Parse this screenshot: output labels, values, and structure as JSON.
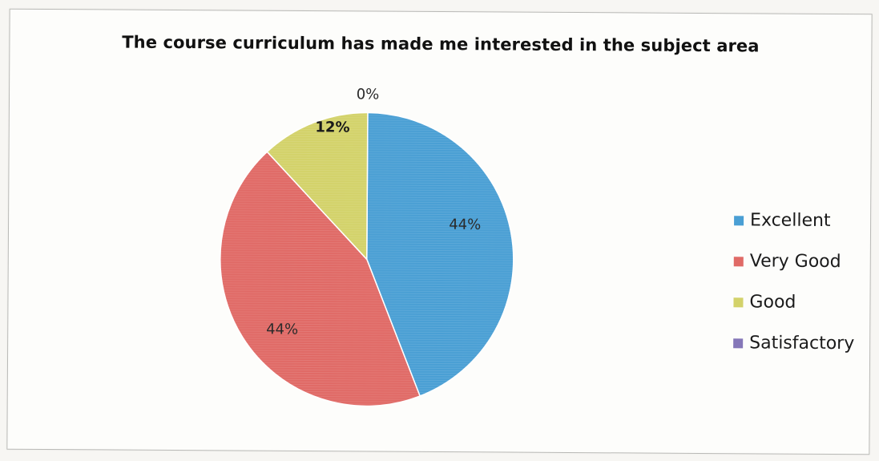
{
  "chart_data": {
    "type": "pie",
    "title": "The course curriculum has made me interested in the subject area",
    "categories": [
      "Excellent",
      "Very Good",
      "Good",
      "Satisfactory"
    ],
    "values": [
      44,
      44,
      12,
      0
    ],
    "data_labels": [
      "44%",
      "44%",
      "12%",
      "0%"
    ],
    "colors": [
      "#4a9fd4",
      "#e06a66",
      "#d3d26a",
      "#8577b8"
    ],
    "legend_position": "right",
    "start_angle_deg": 0,
    "direction": "clockwise"
  }
}
